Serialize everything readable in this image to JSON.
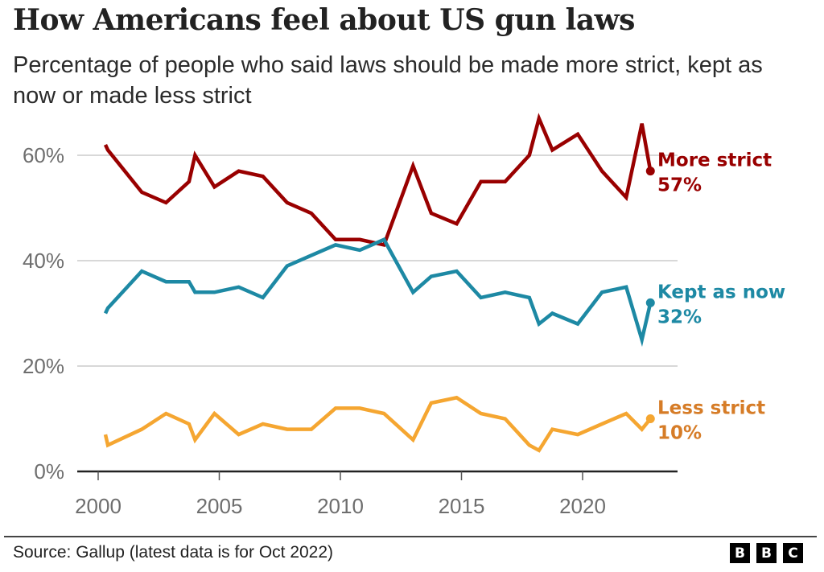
{
  "header": {
    "title": "How Americans feel about US gun laws",
    "subtitle": "Percentage of people who said laws should be made more strict, kept as now or made less strict"
  },
  "footer": {
    "source": "Source: Gallup (latest data is for Oct 2022)",
    "logo_letters": [
      "B",
      "B",
      "C"
    ]
  },
  "chart_data": {
    "type": "line",
    "title": "How Americans feel about US gun laws",
    "subtitle": "Percentage of people who said laws should be made more strict, kept as now or made less strict",
    "xlabel": "",
    "ylabel": "",
    "xlim": [
      1999.2,
      2023.9
    ],
    "ylim": [
      0,
      70
    ],
    "x_ticks": [
      2000,
      2005,
      2010,
      2015,
      2020
    ],
    "x_tick_labels": [
      "2000",
      "2005",
      "2010",
      "2015",
      "2020"
    ],
    "y_ticks": [
      0,
      20,
      40,
      60
    ],
    "y_tick_labels": [
      "0%",
      "20%",
      "40%",
      "60%"
    ],
    "grid": true,
    "legend": "direct labels at right end of lines",
    "x": [
      2000.3,
      2000.4,
      2001.8,
      2002.8,
      2003.75,
      2004.0,
      2004.8,
      2005.8,
      2006.8,
      2007.8,
      2008.8,
      2009.8,
      2010.8,
      2011.8,
      2013.0,
      2013.75,
      2014.8,
      2015.8,
      2016.8,
      2017.8,
      2018.2,
      2018.75,
      2019.8,
      2020.8,
      2021.8,
      2022.45,
      2022.8
    ],
    "series": [
      {
        "name": "More strict",
        "label": "More strict",
        "value_label": "57%",
        "color": "#990000",
        "label_color": "#990000",
        "values": [
          62,
          61,
          53,
          51,
          55,
          60,
          54,
          57,
          56,
          51,
          49,
          44,
          44,
          43,
          58,
          49,
          47,
          55,
          55,
          60,
          67,
          61,
          64,
          57,
          52,
          66,
          57
        ]
      },
      {
        "name": "Kept as now",
        "label": "Kept as now",
        "value_label": "32%",
        "color": "#1D89A4",
        "label_color": "#1D89A4",
        "values": [
          30,
          31,
          38,
          36,
          36,
          34,
          34,
          35,
          33,
          39,
          41,
          43,
          42,
          44,
          34,
          37,
          38,
          33,
          34,
          33,
          28,
          30,
          28,
          34,
          35,
          25,
          32
        ]
      },
      {
        "name": "Less strict",
        "label": "Less strict",
        "value_label": "10%",
        "color": "#F5A631",
        "label_color": "#D67C27",
        "values": [
          7,
          5,
          8,
          11,
          9,
          6,
          11,
          7,
          9,
          8,
          8,
          12,
          12,
          11,
          6,
          13,
          14,
          11,
          10,
          5,
          4,
          8,
          7,
          9,
          11,
          8,
          10
        ]
      }
    ]
  }
}
